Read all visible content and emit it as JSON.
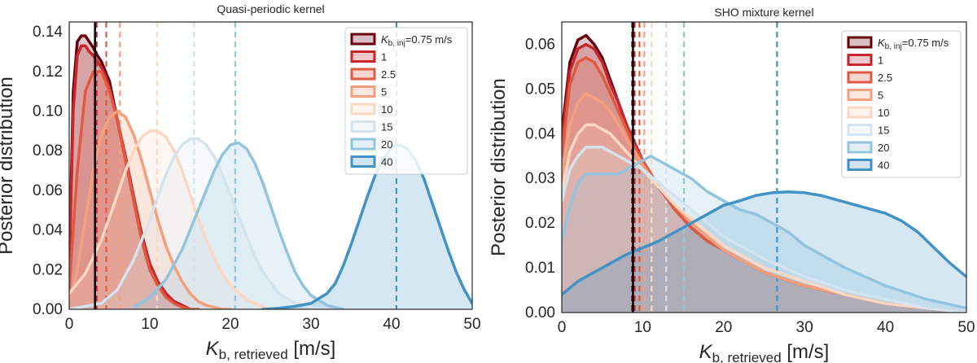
{
  "chart_data": [
    {
      "type": "area",
      "title": "Quasi-periodic kernel",
      "xlabel_main": "K",
      "xlabel_sub": "b, retrieved",
      "xlabel_unit": " [m/s]",
      "ylabel": "Posterior distribution",
      "xlim": [
        0,
        50
      ],
      "ylim": [
        0,
        0.145
      ],
      "xticks": [
        0,
        10,
        20,
        30,
        40,
        50
      ],
      "yticks": [
        0.0,
        0.02,
        0.04,
        0.06,
        0.08,
        0.1,
        0.12,
        0.14
      ],
      "ytick_labels": [
        "0.00",
        "0.02",
        "0.04",
        "0.06",
        "0.08",
        "0.10",
        "0.12",
        "0.14"
      ],
      "grid": false,
      "legend_position": "top-right",
      "injected_line": 3.2,
      "series": [
        {
          "name": "K_inj=0.75 m/s",
          "color": "#67000d",
          "mean": 3.2,
          "x": [
            0,
            0.5,
            1,
            1.5,
            2,
            2.5,
            3,
            3.5,
            4,
            4.5,
            5,
            6,
            7,
            8,
            9,
            10,
            11,
            12,
            13,
            14,
            15
          ],
          "y": [
            0.02,
            0.11,
            0.135,
            0.138,
            0.138,
            0.135,
            0.132,
            0.128,
            0.125,
            0.12,
            0.115,
            0.095,
            0.075,
            0.055,
            0.035,
            0.02,
            0.012,
            0.007,
            0.004,
            0.002,
            0.0
          ]
        },
        {
          "name": "1",
          "color": "#c6262c",
          "mean": 3.4,
          "x": [
            0,
            0.5,
            1,
            1.5,
            2,
            2.5,
            3,
            3.5,
            4,
            4.5,
            5,
            6,
            7,
            8,
            9,
            10,
            11,
            12,
            13,
            14,
            15
          ],
          "y": [
            0.02,
            0.1,
            0.128,
            0.133,
            0.133,
            0.13,
            0.128,
            0.125,
            0.122,
            0.118,
            0.112,
            0.095,
            0.077,
            0.057,
            0.038,
            0.023,
            0.014,
            0.008,
            0.004,
            0.002,
            0.0
          ]
        },
        {
          "name": "2.5",
          "color": "#e05a42",
          "mean": 4.6,
          "x": [
            0,
            1,
            2,
            3,
            4,
            5,
            6,
            7,
            8,
            9,
            10,
            11,
            12,
            13,
            14,
            15,
            16
          ],
          "y": [
            0.01,
            0.07,
            0.11,
            0.12,
            0.12,
            0.11,
            0.095,
            0.075,
            0.055,
            0.035,
            0.02,
            0.012,
            0.006,
            0.003,
            0.001,
            0.0,
            0.0
          ]
        },
        {
          "name": "5",
          "color": "#f4a07d",
          "mean": 6.3,
          "x": [
            0,
            1,
            2,
            3,
            4,
            5,
            6,
            7,
            8,
            9,
            10,
            11,
            12,
            13,
            14,
            15,
            16,
            17,
            18,
            19,
            20
          ],
          "y": [
            0.003,
            0.02,
            0.045,
            0.07,
            0.088,
            0.097,
            0.1,
            0.097,
            0.088,
            0.075,
            0.06,
            0.045,
            0.032,
            0.022,
            0.014,
            0.008,
            0.004,
            0.002,
            0.001,
            0.0,
            0.0
          ]
        },
        {
          "name": "10",
          "color": "#fcd8c4",
          "mean": 10.9,
          "x": [
            0,
            2,
            4,
            6,
            7,
            8,
            9,
            10,
            11,
            12,
            13,
            14,
            15,
            16,
            17,
            18,
            19,
            20,
            22,
            24,
            26
          ],
          "y": [
            0.008,
            0.018,
            0.035,
            0.058,
            0.07,
            0.08,
            0.087,
            0.09,
            0.09,
            0.087,
            0.08,
            0.07,
            0.058,
            0.046,
            0.035,
            0.026,
            0.018,
            0.012,
            0.005,
            0.001,
            0.0
          ]
        },
        {
          "name": "15",
          "color": "#d3e3ef",
          "mean": 15.5,
          "x": [
            0,
            4,
            6,
            8,
            10,
            11,
            12,
            13,
            14,
            15,
            16,
            17,
            18,
            19,
            20,
            21,
            22,
            23,
            24,
            26,
            28,
            30,
            32
          ],
          "y": [
            0.0,
            0.003,
            0.01,
            0.025,
            0.045,
            0.057,
            0.068,
            0.077,
            0.083,
            0.086,
            0.086,
            0.083,
            0.077,
            0.068,
            0.058,
            0.047,
            0.037,
            0.027,
            0.019,
            0.008,
            0.003,
            0.001,
            0.0
          ]
        },
        {
          "name": "20",
          "color": "#93c4de",
          "mean": 20.6,
          "x": [
            8,
            10,
            12,
            14,
            16,
            17,
            18,
            19,
            20,
            21,
            22,
            23,
            24,
            25,
            26,
            27,
            28,
            29,
            30,
            32,
            34
          ],
          "y": [
            0.001,
            0.006,
            0.015,
            0.03,
            0.05,
            0.06,
            0.07,
            0.078,
            0.083,
            0.084,
            0.081,
            0.074,
            0.064,
            0.052,
            0.04,
            0.029,
            0.019,
            0.012,
            0.007,
            0.002,
            0.0
          ]
        },
        {
          "name": "40",
          "color": "#4292c6",
          "mean": 40.6,
          "x": [
            24,
            26,
            28,
            30,
            32,
            33,
            34,
            35,
            36,
            37,
            38,
            39,
            40,
            41,
            42,
            43,
            44,
            45,
            46,
            47,
            48,
            49,
            50
          ],
          "y": [
            0.0,
            0.0005,
            0.0015,
            0.003,
            0.008,
            0.013,
            0.022,
            0.033,
            0.045,
            0.057,
            0.068,
            0.076,
            0.082,
            0.083,
            0.081,
            0.075,
            0.066,
            0.054,
            0.042,
            0.03,
            0.019,
            0.01,
            0.003
          ]
        }
      ]
    },
    {
      "type": "area",
      "title": "SHO mixture kernel",
      "xlabel_main": "K",
      "xlabel_sub": "b, retrieved",
      "xlabel_unit": " [m/s]",
      "ylabel": "Posterior distribution",
      "xlim": [
        0,
        50
      ],
      "ylim": [
        0,
        0.065
      ],
      "xticks": [
        0,
        10,
        20,
        30,
        40,
        50
      ],
      "yticks": [
        0.0,
        0.01,
        0.02,
        0.03,
        0.04,
        0.05,
        0.06
      ],
      "ytick_labels": [
        "0.00",
        "0.01",
        "0.02",
        "0.03",
        "0.04",
        "0.05",
        "0.06"
      ],
      "grid": false,
      "legend_position": "top-right",
      "injected_line": 8.8,
      "series": [
        {
          "name": "K_inj=0.75 m/s",
          "color": "#67000d",
          "mean": 8.7,
          "x": [
            0,
            1,
            2,
            3,
            4,
            5,
            6,
            7,
            8,
            9,
            10,
            12,
            14,
            16,
            18,
            20,
            25,
            30,
            35,
            40,
            45,
            50
          ],
          "y": [
            0.04,
            0.056,
            0.061,
            0.062,
            0.06,
            0.057,
            0.052,
            0.047,
            0.042,
            0.038,
            0.034,
            0.028,
            0.023,
            0.019,
            0.016,
            0.014,
            0.009,
            0.006,
            0.004,
            0.002,
            0.001,
            0.0
          ]
        },
        {
          "name": "1",
          "color": "#c6262c",
          "mean": 9.0,
          "x": [
            0,
            1,
            2,
            3,
            4,
            5,
            6,
            7,
            8,
            9,
            10,
            12,
            14,
            16,
            18,
            20,
            25,
            30,
            35,
            40,
            45,
            50
          ],
          "y": [
            0.038,
            0.054,
            0.059,
            0.06,
            0.059,
            0.056,
            0.051,
            0.047,
            0.042,
            0.038,
            0.034,
            0.028,
            0.023,
            0.019,
            0.016,
            0.014,
            0.009,
            0.006,
            0.004,
            0.002,
            0.001,
            0.0
          ]
        },
        {
          "name": "2.5",
          "color": "#e05a42",
          "mean": 9.6,
          "x": [
            0,
            1,
            2,
            3,
            4,
            5,
            6,
            7,
            8,
            9,
            10,
            12,
            14,
            16,
            18,
            20,
            25,
            30,
            35,
            40,
            45,
            50
          ],
          "y": [
            0.035,
            0.051,
            0.056,
            0.057,
            0.056,
            0.053,
            0.049,
            0.045,
            0.041,
            0.037,
            0.034,
            0.028,
            0.023,
            0.019,
            0.016,
            0.014,
            0.009,
            0.006,
            0.004,
            0.002,
            0.001,
            0.0
          ]
        },
        {
          "name": "5",
          "color": "#f4a07d",
          "mean": 10.2,
          "x": [
            0,
            1,
            2,
            3,
            4,
            5,
            6,
            7,
            8,
            9,
            10,
            12,
            14,
            16,
            18,
            20,
            25,
            30,
            35,
            40,
            45,
            50
          ],
          "y": [
            0.03,
            0.042,
            0.047,
            0.049,
            0.048,
            0.047,
            0.045,
            0.042,
            0.039,
            0.036,
            0.033,
            0.028,
            0.024,
            0.02,
            0.017,
            0.014,
            0.009,
            0.006,
            0.004,
            0.002,
            0.001,
            0.0
          ]
        },
        {
          "name": "10",
          "color": "#fcd8c4",
          "mean": 11.1,
          "x": [
            0,
            1,
            2,
            3,
            4,
            5,
            6,
            7,
            8,
            9,
            10,
            12,
            14,
            16,
            18,
            20,
            25,
            30,
            35,
            40,
            45,
            50
          ],
          "y": [
            0.027,
            0.036,
            0.04,
            0.042,
            0.042,
            0.041,
            0.04,
            0.038,
            0.036,
            0.034,
            0.032,
            0.028,
            0.024,
            0.021,
            0.018,
            0.015,
            0.01,
            0.007,
            0.004,
            0.002,
            0.001,
            0.0
          ]
        },
        {
          "name": "15",
          "color": "#d3e3ef",
          "mean": 12.9,
          "x": [
            0,
            1,
            2,
            3,
            4,
            5,
            6,
            7,
            8,
            9,
            10,
            12,
            14,
            16,
            18,
            20,
            25,
            30,
            35,
            40,
            45,
            50
          ],
          "y": [
            0.025,
            0.032,
            0.035,
            0.037,
            0.037,
            0.037,
            0.036,
            0.035,
            0.034,
            0.033,
            0.032,
            0.029,
            0.026,
            0.023,
            0.02,
            0.017,
            0.012,
            0.008,
            0.005,
            0.003,
            0.001,
            0.0
          ]
        },
        {
          "name": "20",
          "color": "#93c4de",
          "mean": 15.1,
          "x": [
            0,
            1,
            2,
            3,
            4,
            5,
            6,
            7,
            8,
            9,
            10,
            11,
            12,
            14,
            16,
            18,
            20,
            22,
            24,
            26,
            28,
            30,
            35,
            40,
            45,
            50
          ],
          "y": [
            0.016,
            0.024,
            0.029,
            0.031,
            0.031,
            0.031,
            0.031,
            0.031,
            0.032,
            0.033,
            0.034,
            0.035,
            0.034,
            0.032,
            0.03,
            0.027,
            0.025,
            0.023,
            0.022,
            0.02,
            0.018,
            0.015,
            0.01,
            0.006,
            0.003,
            0.001
          ]
        },
        {
          "name": "40",
          "color": "#4292c6",
          "mean": 26.6,
          "x": [
            0,
            2,
            4,
            6,
            8,
            10,
            12,
            14,
            16,
            18,
            20,
            22,
            24,
            26,
            28,
            30,
            32,
            34,
            36,
            38,
            40,
            42,
            44,
            46,
            48,
            50
          ],
          "y": [
            0.004,
            0.007,
            0.009,
            0.011,
            0.013,
            0.0145,
            0.016,
            0.018,
            0.02,
            0.022,
            0.024,
            0.025,
            0.0262,
            0.0268,
            0.027,
            0.0268,
            0.0262,
            0.0252,
            0.0242,
            0.0232,
            0.0222,
            0.0205,
            0.018,
            0.0145,
            0.011,
            0.008
          ]
        }
      ]
    }
  ]
}
